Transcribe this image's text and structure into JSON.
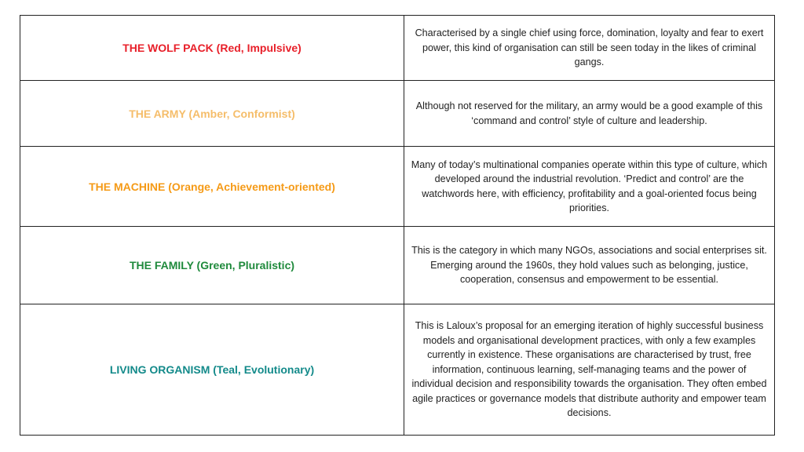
{
  "table": {
    "rows": [
      {
        "title": "THE WOLF PACK (Red, Impulsive)",
        "color": "#e8202a",
        "description": "Characterised by a single chief using force, domination, loyalty and fear to exert power, this kind of organisation can still be seen today in the likes of criminal gangs."
      },
      {
        "title": "THE ARMY (Amber, Conformist)",
        "color": "#f5bd6a",
        "description": "Although not reserved for the military, an army would be a good example of this ‘command and control’ style of culture and leadership."
      },
      {
        "title": "THE MACHINE (Orange, Achievement-oriented)",
        "color": "#f59a16",
        "description": "Many of today’s multinational companies operate within this type of culture, which developed around the industrial revolution. ‘Predict and control’ are the watchwords here, with efficiency, profitability and a goal-oriented focus being priorities."
      },
      {
        "title": "THE FAMILY (Green, Pluralistic)",
        "color": "#1f8a3c",
        "description": "This is the category in which many NGOs, associations and social enterprises sit. Emerging around the 1960s, they hold values such as belonging, justice, cooperation, consensus and empowerment to be essential."
      },
      {
        "title": "LIVING ORGANISM (Teal, Evolutionary)",
        "color": "#138a8a",
        "description": "This is Laloux’s proposal for an emerging iteration of highly successful business models and organisational development practices, with only a few examples currently in existence. These organisations are characterised by trust, free information, continuous learning, self-managing teams and the power of individual decision and responsibility towards the organisation. They often embed agile practices or governance models that distribute authority and empower team decisions."
      }
    ]
  }
}
